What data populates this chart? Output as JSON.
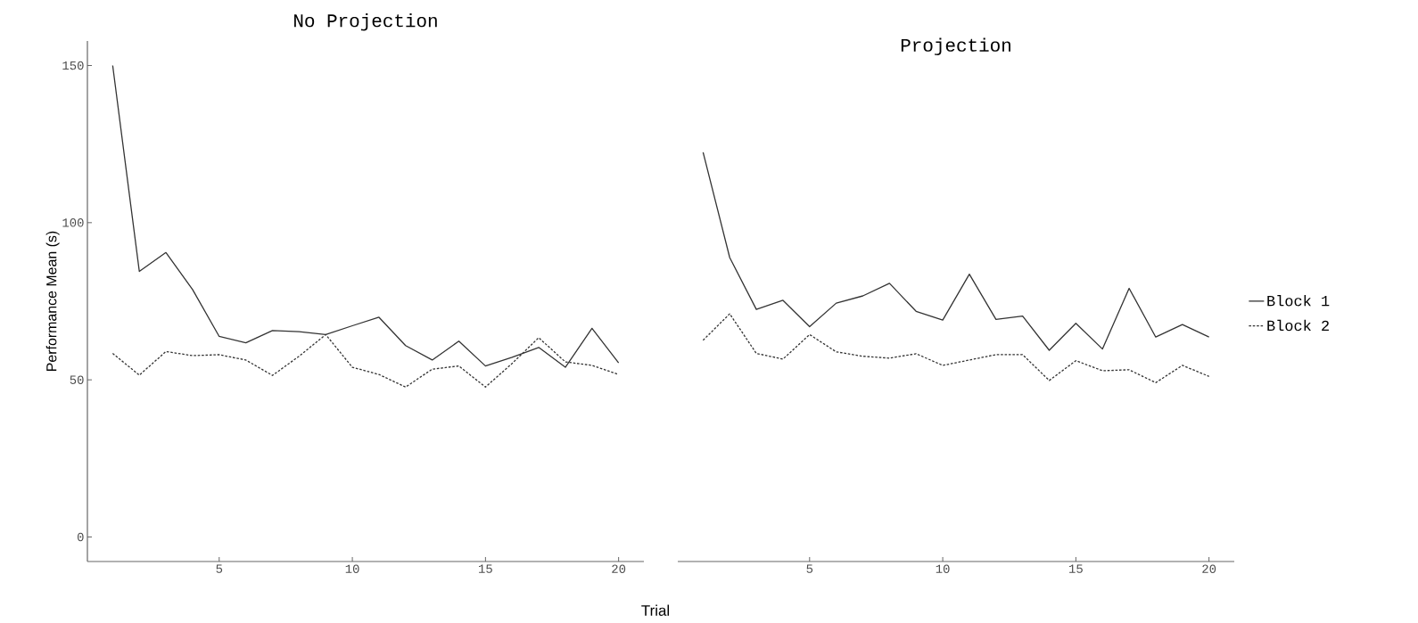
{
  "chart_data": [
    {
      "type": "line",
      "title": "No Projection",
      "xlabel": "Trial",
      "ylabel": "Performance Mean (s)",
      "x": [
        1,
        2,
        3,
        4,
        5,
        6,
        7,
        8,
        9,
        10,
        11,
        12,
        13,
        14,
        15,
        16,
        17,
        18,
        19,
        20
      ],
      "xlim": [
        0.05,
        20.95
      ],
      "ylim": [
        -7.8,
        157.8
      ],
      "xticks": [
        5,
        10,
        15,
        20
      ],
      "yticks": [
        0,
        50,
        100,
        150
      ],
      "legend": false,
      "grid": false,
      "series": [
        {
          "color": "#333333",
          "line_style": "solid",
          "values": [
            150,
            84.5,
            90.5,
            78.7,
            63.8,
            61.8,
            65.7,
            65.3,
            64.4,
            67.2,
            69.9,
            60.9,
            56.3,
            62.3,
            54.4,
            57.2,
            60.3,
            54.0,
            66.4,
            55.4
          ]
        },
        {
          "color": "#333333",
          "line_style": "dotted",
          "values": [
            58.4,
            51.5,
            59.0,
            57.7,
            58.0,
            56.3,
            51.4,
            57.5,
            64.4,
            54.0,
            51.7,
            47.7,
            53.4,
            54.4,
            47.7,
            55.2,
            63.4,
            55.7,
            54.6,
            51.7
          ]
        }
      ]
    },
    {
      "type": "line",
      "title": "Projection",
      "x": [
        1,
        2,
        3,
        4,
        5,
        6,
        7,
        8,
        9,
        10,
        11,
        12,
        13,
        14,
        15,
        16,
        17,
        18,
        19,
        20
      ],
      "xlim": [
        0.05,
        20.95
      ],
      "ylim": [
        -7.8,
        150
      ],
      "xticks": [
        5,
        10,
        15,
        20
      ],
      "yticks": [
        0,
        50,
        100,
        150
      ],
      "tick_labels": "x",
      "legend": "right",
      "grid": false,
      "series": [
        {
          "name": "Block 1",
          "color": "#333333",
          "line_style": "solid",
          "values": [
            122.4,
            88.9,
            72.4,
            75.3,
            66.9,
            74.4,
            76.7,
            80.7,
            71.8,
            69.0,
            83.6,
            69.2,
            70.3,
            59.4,
            68.0,
            59.8,
            79.1,
            63.6,
            67.6,
            63.6
          ]
        },
        {
          "name": "Block 2",
          "color": "#333333",
          "line_style": "dotted",
          "values": [
            62.6,
            71.0,
            58.4,
            56.6,
            64.4,
            58.9,
            57.5,
            56.9,
            58.3,
            54.6,
            56.3,
            58.0,
            58.0,
            49.8,
            56.1,
            52.9,
            53.2,
            49.1,
            54.6,
            51.1
          ]
        }
      ]
    }
  ]
}
